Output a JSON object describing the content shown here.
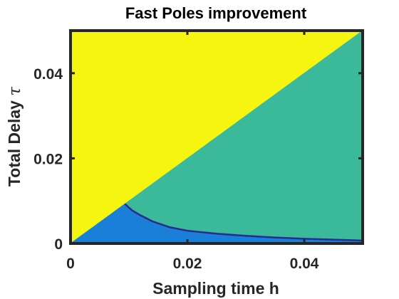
{
  "chart_data": {
    "type": "heatmap",
    "title": "Fast Poles improvement",
    "xlabel": "Sampling time h",
    "ylabel_text": "Total Delay ",
    "ylabel_symbol": "τ",
    "xlim": [
      0,
      0.05
    ],
    "ylim": [
      0,
      0.05
    ],
    "xticks": [
      0,
      0.02,
      0.04
    ],
    "yticks": [
      0,
      0.02,
      0.04
    ],
    "xtick_labels": [
      "0",
      "0.02",
      "0.04"
    ],
    "ytick_labels": [
      "0",
      "0.02",
      "0.04"
    ],
    "grid": false,
    "regions": [
      {
        "color": "#f5f50f",
        "description_points": [
          [
            0,
            0
          ],
          [
            0,
            0.05
          ],
          [
            0.05,
            0.05
          ]
        ]
      },
      {
        "color": "#3bb99b",
        "description_points": [
          [
            0.0093,
            0.0093
          ],
          [
            0.05,
            0.05
          ],
          [
            0.05,
            0.0007
          ],
          [
            0.045,
            0.0009
          ],
          [
            0.04,
            0.0011
          ],
          [
            0.035,
            0.0014
          ],
          [
            0.03,
            0.0018
          ],
          [
            0.025,
            0.0023
          ],
          [
            0.02,
            0.003
          ],
          [
            0.017,
            0.0038
          ],
          [
            0.014,
            0.0052
          ],
          [
            0.012,
            0.0066
          ],
          [
            0.0105,
            0.0078
          ]
        ]
      },
      {
        "color": "#1a7fd6",
        "description_points": [
          [
            0,
            0
          ],
          [
            0.0093,
            0.0093
          ],
          [
            0.0105,
            0.0078
          ],
          [
            0.012,
            0.0066
          ],
          [
            0.014,
            0.0052
          ],
          [
            0.017,
            0.0038
          ],
          [
            0.02,
            0.003
          ],
          [
            0.025,
            0.0023
          ],
          [
            0.03,
            0.0018
          ],
          [
            0.035,
            0.0014
          ],
          [
            0.04,
            0.0011
          ],
          [
            0.045,
            0.0009
          ],
          [
            0.05,
            0.0007
          ],
          [
            0.05,
            0
          ]
        ]
      }
    ],
    "boundary_curve": {
      "color": "#2a2a8c",
      "points": [
        [
          0.0093,
          0.0093
        ],
        [
          0.0105,
          0.0078
        ],
        [
          0.012,
          0.0066
        ],
        [
          0.014,
          0.0052
        ],
        [
          0.017,
          0.0038
        ],
        [
          0.02,
          0.003
        ],
        [
          0.025,
          0.0023
        ],
        [
          0.03,
          0.0018
        ],
        [
          0.035,
          0.0014
        ],
        [
          0.04,
          0.0011
        ],
        [
          0.045,
          0.0009
        ],
        [
          0.05,
          0.0007
        ]
      ]
    }
  }
}
